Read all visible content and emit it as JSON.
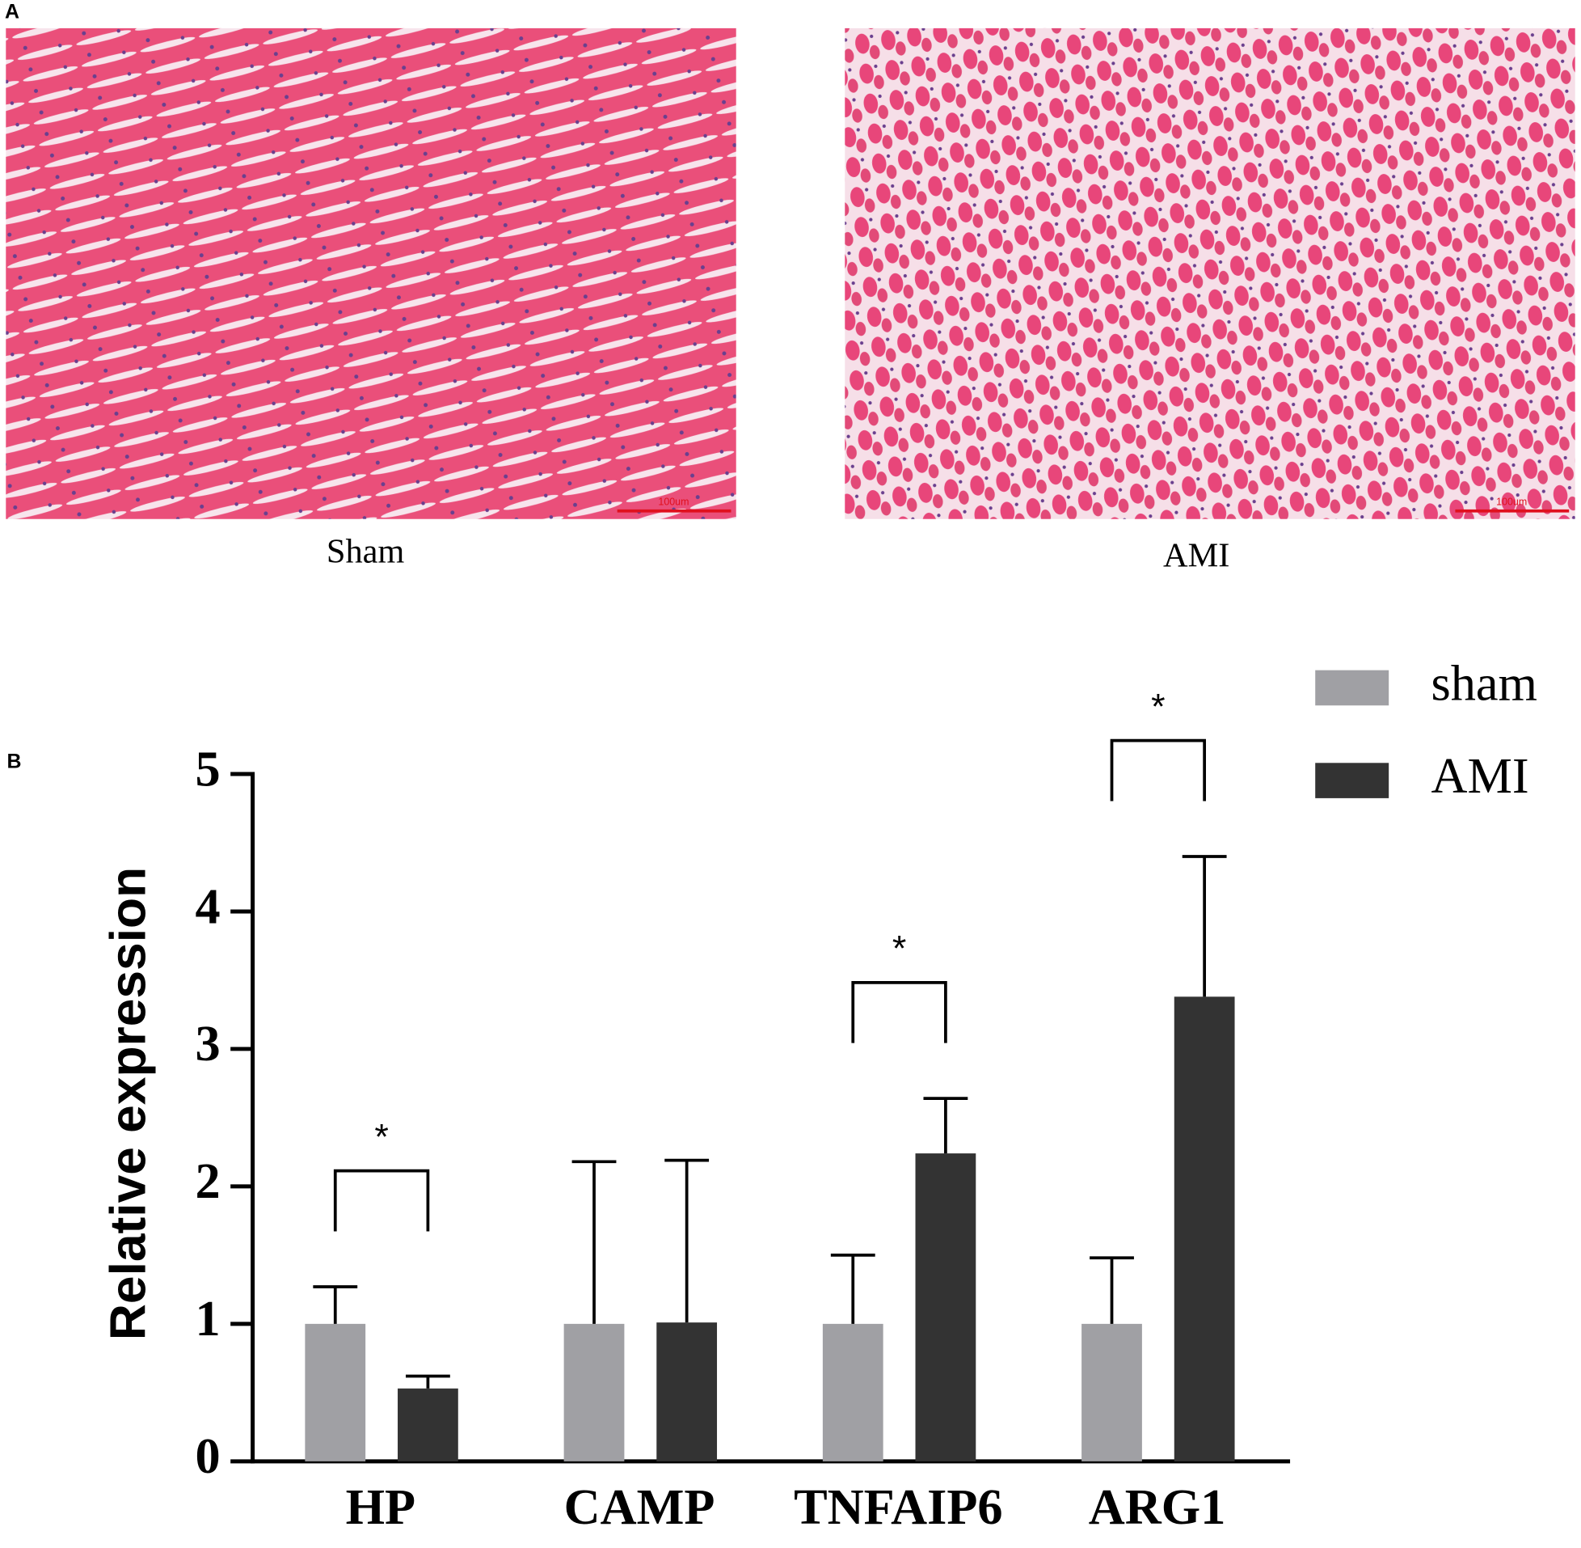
{
  "panel_a": {
    "label": "A",
    "images": [
      {
        "caption": "Sham",
        "scale_bar": "100um"
      },
      {
        "caption": "AMI",
        "scale_bar": "100um"
      }
    ]
  },
  "chart_data": {
    "type": "bar",
    "panel_label": "B",
    "y_label": "Relative expression",
    "categories": [
      "HP",
      "CAMP",
      "TNFAIP6",
      "ARG1"
    ],
    "series": [
      {
        "name": "sham",
        "color": "#a0a0a4",
        "values": [
          1,
          1,
          1,
          1
        ],
        "errors": [
          0.27,
          1.18,
          0.5,
          0.48
        ]
      },
      {
        "name": "AMI",
        "color": "#333333",
        "values": [
          0.53,
          1.01,
          2.24,
          3.38
        ],
        "errors": [
          0.09,
          1.18,
          0.4,
          1.02
        ]
      }
    ],
    "ylim": [
      0,
      5
    ],
    "yticks": [
      0,
      1,
      2,
      3,
      4,
      5
    ],
    "annotations": [
      {
        "text": "*",
        "category": "HP"
      },
      {
        "text": "*",
        "category": "TNFAIP6"
      },
      {
        "text": "*",
        "category": "ARG1"
      }
    ]
  }
}
